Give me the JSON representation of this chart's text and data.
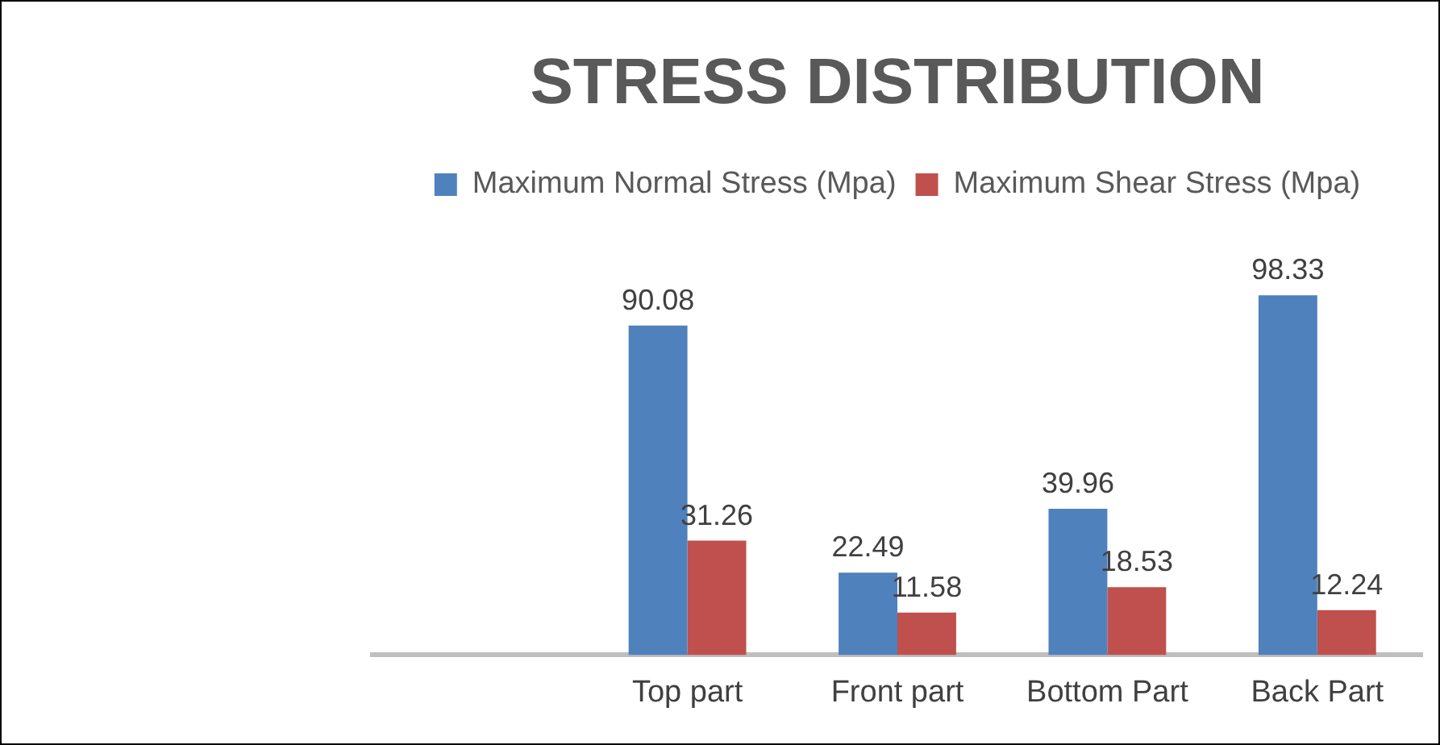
{
  "chart_data": {
    "type": "bar",
    "title": "STRESS DISTRIBUTION",
    "categories": [
      null,
      "Top part",
      "Front part",
      "Bottom Part",
      "Back Part"
    ],
    "series": [
      {
        "name": "Maximum Normal Stress (Mpa)",
        "color": "#4f81bd",
        "values": [
          null,
          90.08,
          22.49,
          39.96,
          98.33
        ]
      },
      {
        "name": "Maximum Shear Stress (Mpa)",
        "color": "#c0504d",
        "values": [
          null,
          31.26,
          11.58,
          18.53,
          12.24
        ]
      }
    ],
    "tick_labels": "x",
    "grid": false,
    "legend": "top",
    "data_labels": true
  }
}
